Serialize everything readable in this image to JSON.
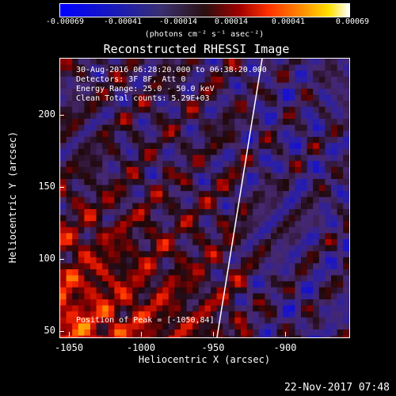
{
  "colorbar": {
    "ticks": [
      "-0.00069",
      "-0.00041",
      "-0.00014",
      "0.00014",
      "0.00041",
      "0.00069"
    ],
    "units": "(photons cm⁻² s⁻¹ asec⁻²)"
  },
  "title": "Reconstructed RHESSI Image",
  "info": {
    "time_range": "30-Aug-2016 06:28:20.000 to 06:38:20.000",
    "detectors": "Detectors: 3F 8F, Att 0",
    "energy": "Energy Range: 25.0 - 50.0 keV",
    "clean": "Clean    Total counts: 5.29E+03"
  },
  "peak": "Position of Peak = [-1050,84]",
  "axes": {
    "xlabel": "Heliocentric X (arcsec)",
    "ylabel": "Heliocentric Y (arcsec)",
    "xticks": [
      "-1050",
      "-1000",
      "-950",
      "-900"
    ],
    "yticks": [
      "200",
      "150",
      "100",
      "50"
    ]
  },
  "footer_date": "22-Nov-2017 07:48",
  "colors": {
    "limb": "#ffffff",
    "background": "#000000"
  }
}
